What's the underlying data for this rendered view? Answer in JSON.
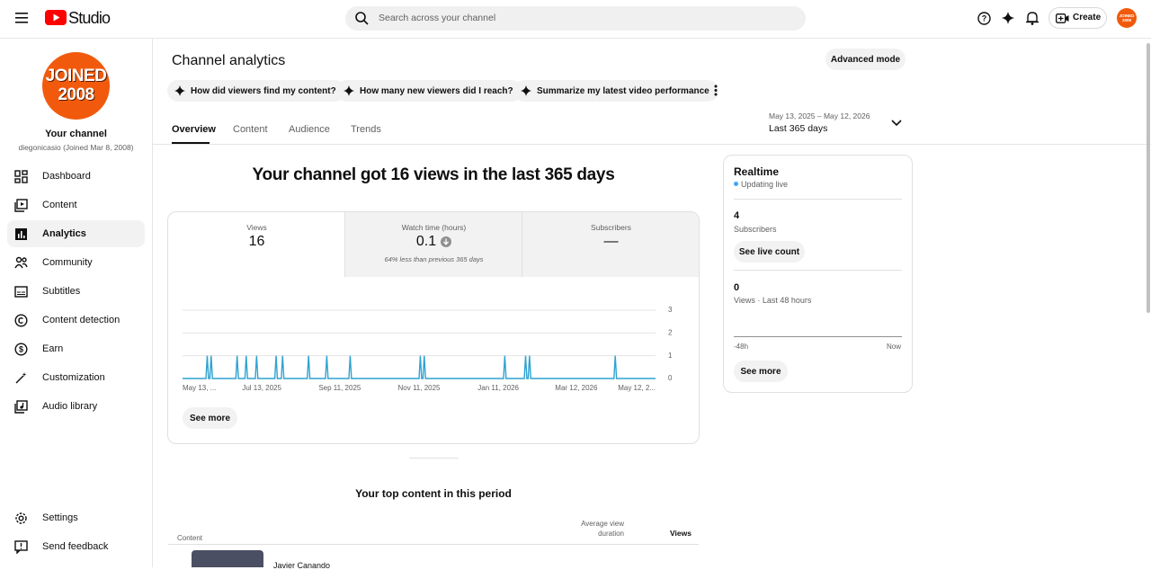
{
  "header": {
    "logo_text": "Studio",
    "search_placeholder": "Search across your channel",
    "create": "Create"
  },
  "sidebar": {
    "avatar_lines": [
      "JOINED",
      "2008"
    ],
    "channel_title": "Your channel",
    "channel_subtitle": "diegonicasio (Joined Mar 8, 2008)",
    "nav": [
      "Dashboard",
      "Content",
      "Analytics",
      "Community",
      "Subtitles",
      "Content detection",
      "Earn",
      "Customization",
      "Audio library"
    ],
    "bottom_nav": [
      "Settings",
      "Send feedback"
    ]
  },
  "main": {
    "title": "Channel analytics",
    "advanced_mode": "Advanced mode",
    "chips": [
      "How did viewers find my content?",
      "How many new viewers did I reach?",
      "Summarize my latest video performance"
    ],
    "tabs": [
      "Overview",
      "Content",
      "Audience",
      "Trends"
    ],
    "date_range": "May 13, 2025 – May 12, 2026",
    "period": "Last 365 days",
    "headline": "Your channel got 16 views in the last 365 days",
    "metrics": [
      {
        "label": "Views",
        "value": "16"
      },
      {
        "label": "Watch time (hours)",
        "value": "0.1",
        "note": "64% less than previous 365 days"
      },
      {
        "label": "Subscribers",
        "value": "—"
      }
    ],
    "see_more": "See more",
    "top_content": {
      "title": "Your top content in this period",
      "columns": [
        "Content",
        "Average view duration",
        "Views"
      ],
      "rows": [
        [
          "Javier Canando"
        ]
      ]
    }
  },
  "chart_data": {
    "type": "line",
    "x": [
      "2025-05-13",
      "2025-05-31",
      "2025-06-01",
      "2025-06-02",
      "2025-06-03",
      "2025-06-04",
      "2025-06-05",
      "2025-06-23",
      "2025-06-24",
      "2025-06-25",
      "2025-06-30",
      "2025-07-01",
      "2025-07-02",
      "2025-07-08",
      "2025-07-09",
      "2025-07-10",
      "2025-07-23",
      "2025-07-24",
      "2025-07-25",
      "2025-07-28",
      "2025-07-29",
      "2025-07-30",
      "2025-08-17",
      "2025-08-18",
      "2025-08-19",
      "2025-08-31",
      "2025-09-01",
      "2025-09-02",
      "2025-09-18",
      "2025-09-19",
      "2025-09-20",
      "2025-11-11",
      "2025-11-12",
      "2025-11-13",
      "2025-11-14",
      "2025-11-15",
      "2025-11-16",
      "2026-01-15",
      "2026-01-16",
      "2026-01-17",
      "2026-01-31",
      "2026-02-01",
      "2026-02-02",
      "2026-02-03",
      "2026-02-04",
      "2026-02-05",
      "2026-04-10",
      "2026-04-11",
      "2026-04-12",
      "2026-05-12"
    ],
    "series": [
      {
        "name": "Views",
        "color": "#2fa3d1",
        "values": [
          0,
          0,
          1,
          0,
          0,
          1,
          0,
          0,
          1,
          0,
          0,
          1,
          0,
          0,
          1,
          0,
          0,
          1,
          0,
          0,
          1,
          0,
          0,
          1,
          0,
          0,
          1,
          0,
          0,
          1,
          0,
          0,
          1,
          0,
          0,
          1,
          0,
          0,
          1,
          0,
          0,
          1,
          0,
          0,
          1,
          0,
          0,
          1,
          0,
          0
        ]
      }
    ],
    "xlim": [
      "2025-05-13",
      "2026-05-12"
    ],
    "xticks": [
      {
        "value": "2025-05-13",
        "label": "May 13, ..."
      },
      {
        "value": "2025-07-13",
        "label": "Jul 13, 2025"
      },
      {
        "value": "2025-09-11",
        "label": "Sep 11, 2025"
      },
      {
        "value": "2025-11-11",
        "label": "Nov 11, 2025"
      },
      {
        "value": "2026-01-11",
        "label": "Jan 11, 2026"
      },
      {
        "value": "2026-03-12",
        "label": "Mar 12, 2026"
      },
      {
        "value": "2026-05-12",
        "label": "May 12, 2..."
      }
    ],
    "ylim": [
      0,
      3
    ],
    "yticks": [
      0,
      1,
      2,
      3
    ],
    "grid": true
  },
  "realtime": {
    "title": "Realtime",
    "status": "Updating live",
    "subscribers": "4",
    "subscribers_label": "Subscribers",
    "live_count": "See live count",
    "views": "0",
    "views_label": "Views · Last 48 hours",
    "axis_start": "-48h",
    "axis_end": "Now",
    "see_more": "See more"
  }
}
